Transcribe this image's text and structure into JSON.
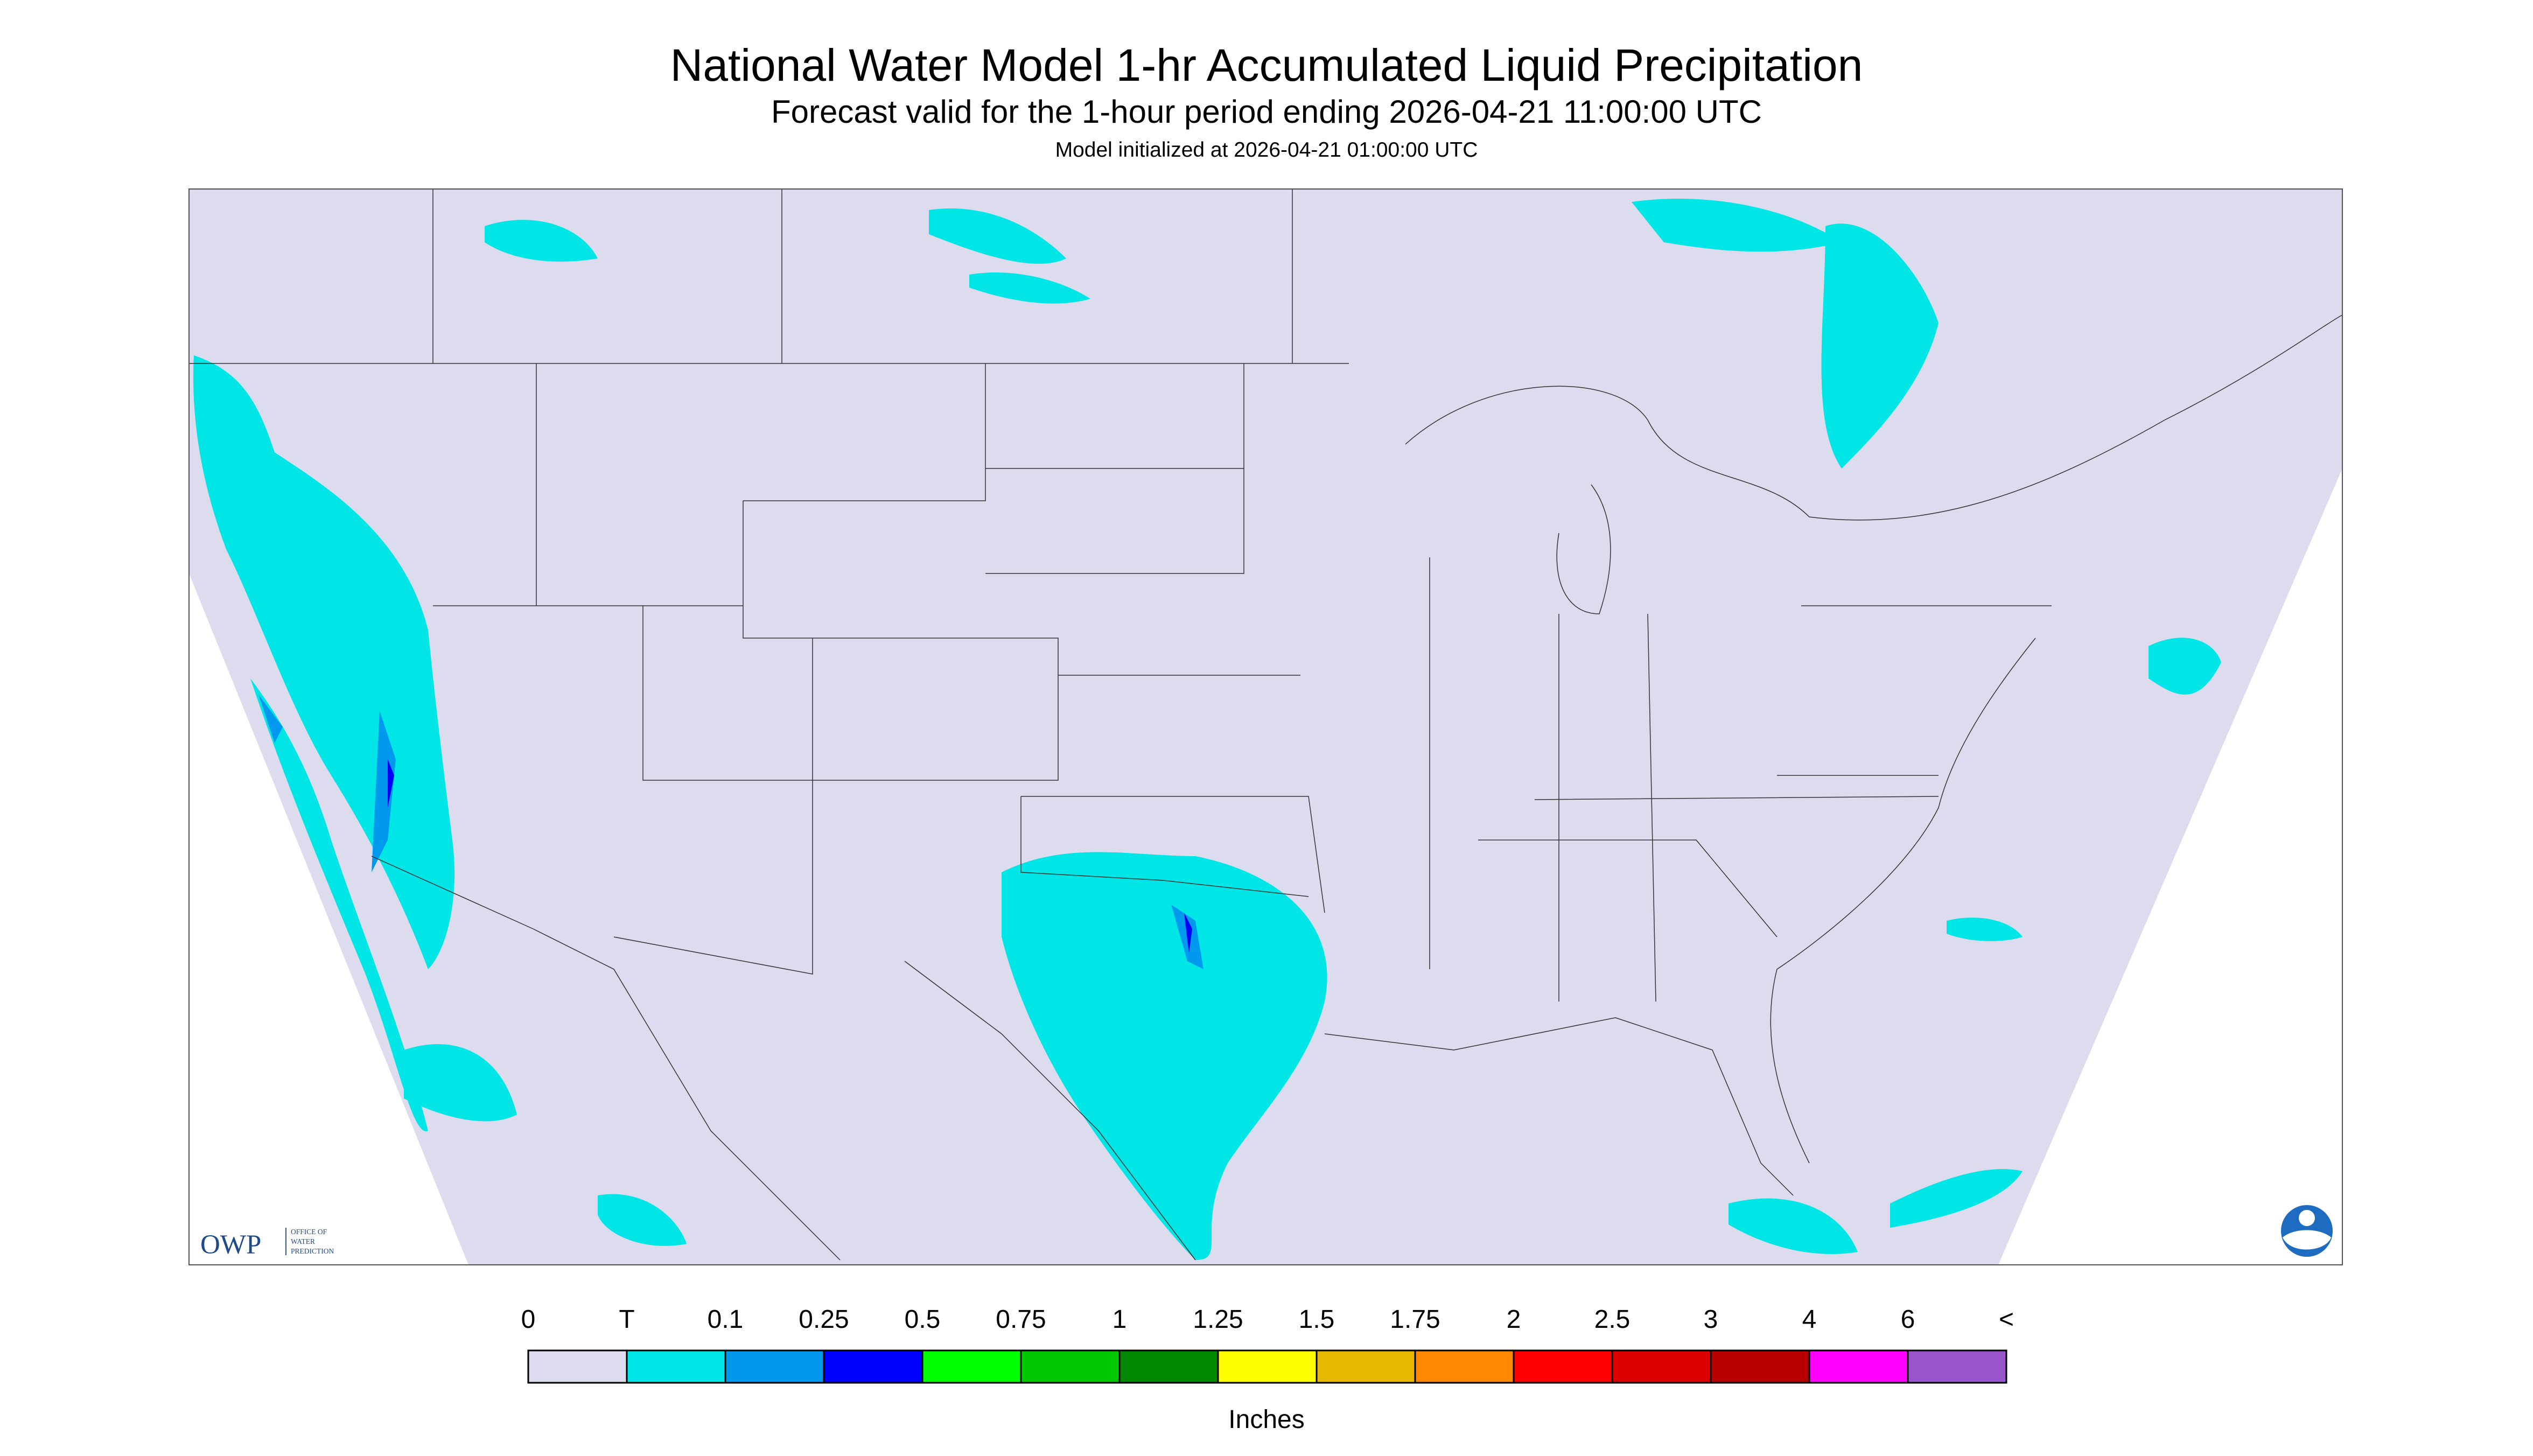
{
  "header": {
    "title": "National Water Model 1-hr Accumulated Liquid Precipitation",
    "subtitle": "Forecast valid for the 1-hour period ending 2026-04-21 11:00:00 UTC",
    "note": "Model initialized at 2026-04-21 01:00:00 UTC"
  },
  "logo": {
    "text": "OWP",
    "caption": [
      "OFFICE OF",
      "WATER",
      "PREDICTION"
    ]
  },
  "legend": {
    "labels": [
      "0",
      "T",
      "0.1",
      "0.25",
      "0.5",
      "0.75",
      "1",
      "1.25",
      "1.5",
      "1.75",
      "2",
      "2.5",
      "3",
      "4",
      "6",
      "<"
    ],
    "colors": [
      "#dcdcee",
      "#00e5e5",
      "#0099ee",
      "#0000ff",
      "#00ff00",
      "#00c800",
      "#008800",
      "#ffff00",
      "#e6b800",
      "#ff8800",
      "#ff0000",
      "#dd0000",
      "#b80000",
      "#ff00ff",
      "#9955cc"
    ],
    "unit": "Inches"
  }
}
